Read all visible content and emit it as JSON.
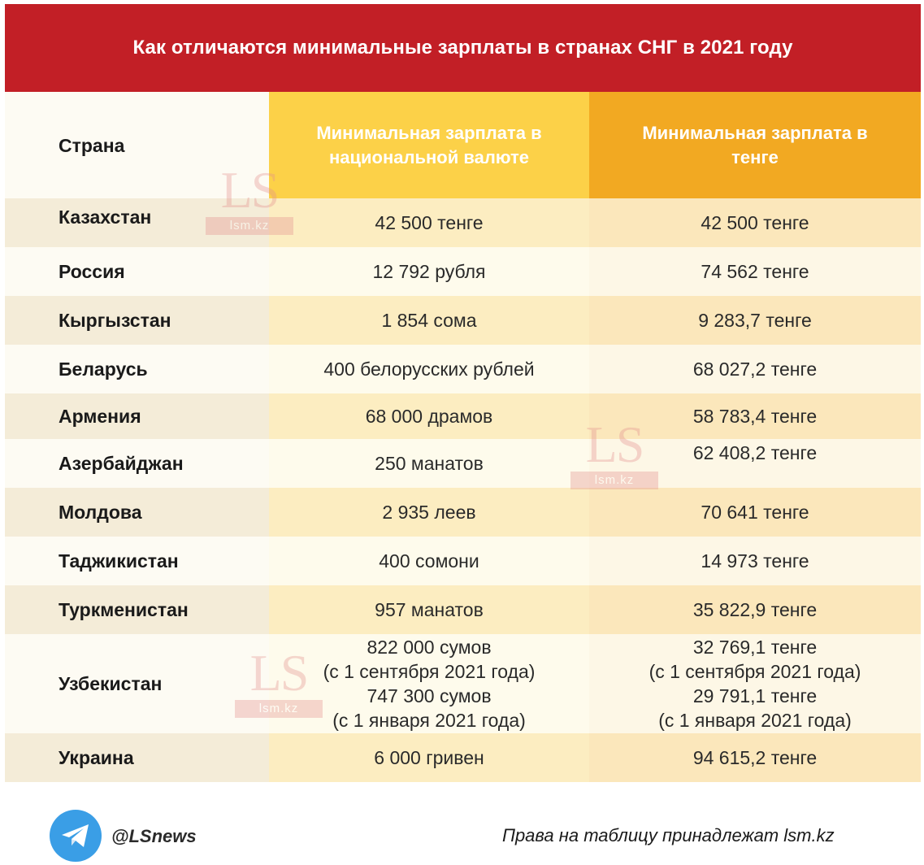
{
  "title": "Как отличаются минимальные зарплаты в странах СНГ в 2021 году",
  "columns": {
    "country": "Страна",
    "national": "Минимальная зарплата в национальной валюте",
    "tenge": "Минимальная зарплата в тенге"
  },
  "rows": [
    {
      "country": "Казахстан",
      "national": "42 500 тенге",
      "tenge": "42 500 тенге"
    },
    {
      "country": "Россия",
      "national": "12 792 рубля",
      "tenge": "74 562 тенге"
    },
    {
      "country": "Кыргызстан",
      "national": "1 854 сома",
      "tenge": "9 283,7 тенге"
    },
    {
      "country": "Беларусь",
      "national": "400 белорусских рублей",
      "tenge": "68 027,2 тенге"
    },
    {
      "country": "Армения",
      "national": "68 000 драмов",
      "tenge": "58 783,4 тенге"
    },
    {
      "country": "Азербайджан",
      "national": "250 манатов",
      "tenge": "62 408,2 тенге"
    },
    {
      "country": "Молдова",
      "national": "2 935 леев",
      "tenge": "70 641 тенге"
    },
    {
      "country": "Таджикистан",
      "national": "400 сомони",
      "tenge": "14 973 тенге"
    },
    {
      "country": "Туркменистан",
      "national": "957 манатов",
      "tenge": "35 822,9 тенге"
    },
    {
      "country": "Узбекистан",
      "national_lines": [
        "822 000 сумов",
        "(с 1 сентября 2021 года)",
        "747 300 сумов",
        "(с 1 января 2021 года)"
      ],
      "tenge_lines": [
        "32 769,1 тенге",
        "(с 1 сентября 2021 года)",
        "29 791,1 тенге",
        "(с 1 января 2021 года)"
      ]
    },
    {
      "country": "Украина",
      "national": "6 000 гривен",
      "tenge": "94 615,2 тенге"
    }
  ],
  "watermark": {
    "logo": "LS",
    "site": "lsm.kz"
  },
  "footer": {
    "telegram_icon": "telegram-icon",
    "handle": "@LSnews",
    "rights": "Права на таблицу принадлежат lsm.kz"
  }
}
